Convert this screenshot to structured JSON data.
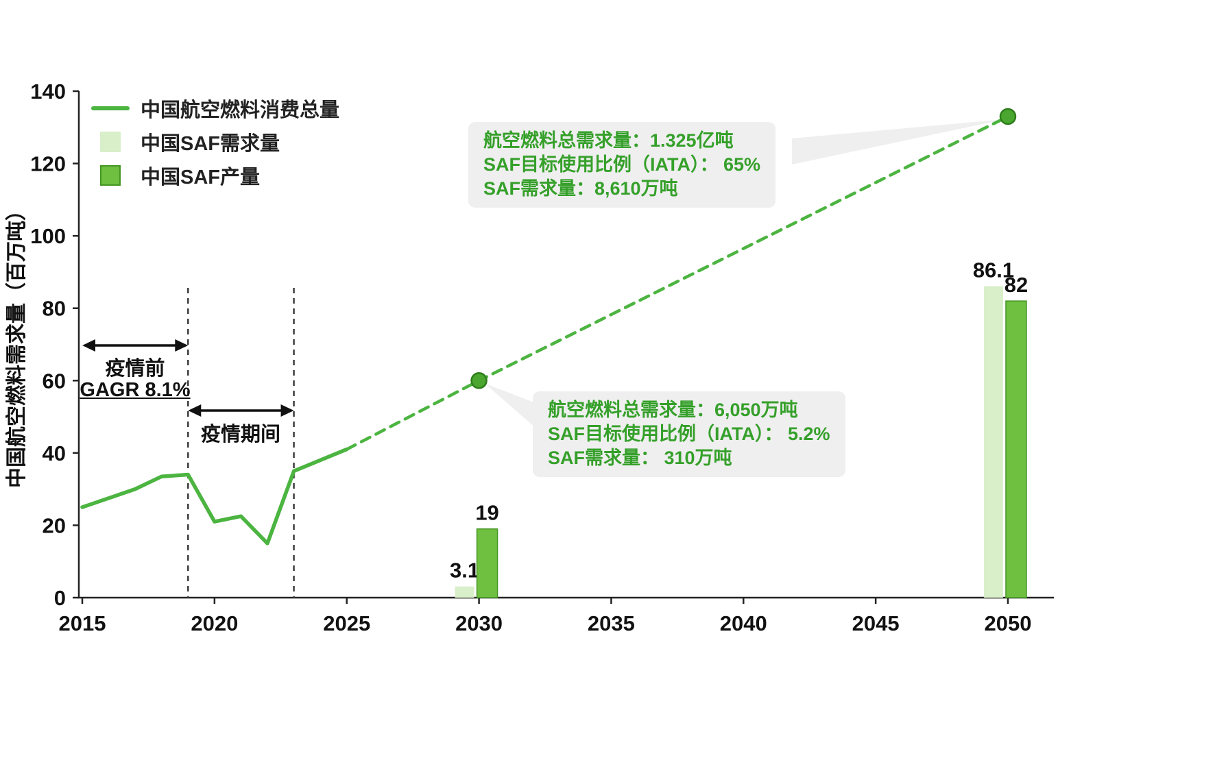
{
  "colors": {
    "line": "#4cb440",
    "bar_light": "#d9efca",
    "bar_dark": "#6fc041",
    "bar_dark_border": "#459622",
    "marker_fill": "#4aa62f",
    "marker_stroke": "#2e7d1b",
    "callout_bg": "#efefef",
    "callout_text": "#35a02a",
    "axis": "#222222",
    "text": "#111111",
    "guide": "#3c3c3c"
  },
  "chart_data": {
    "type": "line",
    "title": "",
    "xlabel": "",
    "ylabel": "中国航空燃料需求量（百万吨）",
    "xlim": [
      2015,
      2051
    ],
    "ylim": [
      0,
      140
    ],
    "xticks": [
      2015,
      2020,
      2025,
      2030,
      2035,
      2040,
      2045,
      2050
    ],
    "yticks": [
      0,
      20,
      40,
      60,
      80,
      100,
      120,
      140
    ],
    "grid": false,
    "legend_position": "top-left",
    "series": [
      {
        "name": "中国航空燃料消费总量",
        "type": "line",
        "segments": [
          {
            "style": "solid",
            "x": [
              2015,
              2016,
              2017,
              2018,
              2019,
              2020,
              2021,
              2022,
              2023,
              2024,
              2025
            ],
            "y": [
              25,
              27.5,
              30,
              33.5,
              34,
              21,
              22.5,
              15,
              35,
              38,
              41
            ]
          },
          {
            "style": "dashed",
            "x": [
              2025,
              2030,
              2050
            ],
            "y": [
              41,
              60,
              133
            ]
          }
        ],
        "markers": [
          {
            "x": 2030,
            "y": 60
          },
          {
            "x": 2050,
            "y": 133
          }
        ]
      },
      {
        "name": "中国SAF需求量",
        "type": "bar",
        "points": [
          {
            "x": 2030,
            "y": 3.1,
            "label": "3.1"
          },
          {
            "x": 2050,
            "y": 86.1,
            "label": "86.1"
          }
        ]
      },
      {
        "name": "中国SAF产量",
        "type": "bar",
        "points": [
          {
            "x": 2030,
            "y": 19,
            "label": "19"
          },
          {
            "x": 2050,
            "y": 82,
            "label": "82"
          }
        ]
      }
    ],
    "guides": {
      "pandemic_start_x": 2019,
      "pandemic_end_x": 2023
    },
    "annotations": {
      "pre_covid": {
        "label": "疫情前",
        "cagr": "GAGR 8.1%",
        "x_span": [
          2015,
          2019
        ]
      },
      "covid": {
        "label": "疫情期间",
        "x_span": [
          2019,
          2023
        ]
      }
    },
    "callouts": [
      {
        "anchor": {
          "x": 2030,
          "y": 60
        },
        "lines": [
          "航空燃料总需求量：6,050万吨",
          "SAF目标使用比例（IATA）： 5.2%",
          "SAF需求量： 310万吨"
        ]
      },
      {
        "anchor": {
          "x": 2050,
          "y": 133
        },
        "lines": [
          "航空燃料总需求量：1.325亿吨",
          "SAF目标使用比例（IATA）： 65%",
          "SAF需求量：8,610万吨"
        ]
      }
    ]
  }
}
